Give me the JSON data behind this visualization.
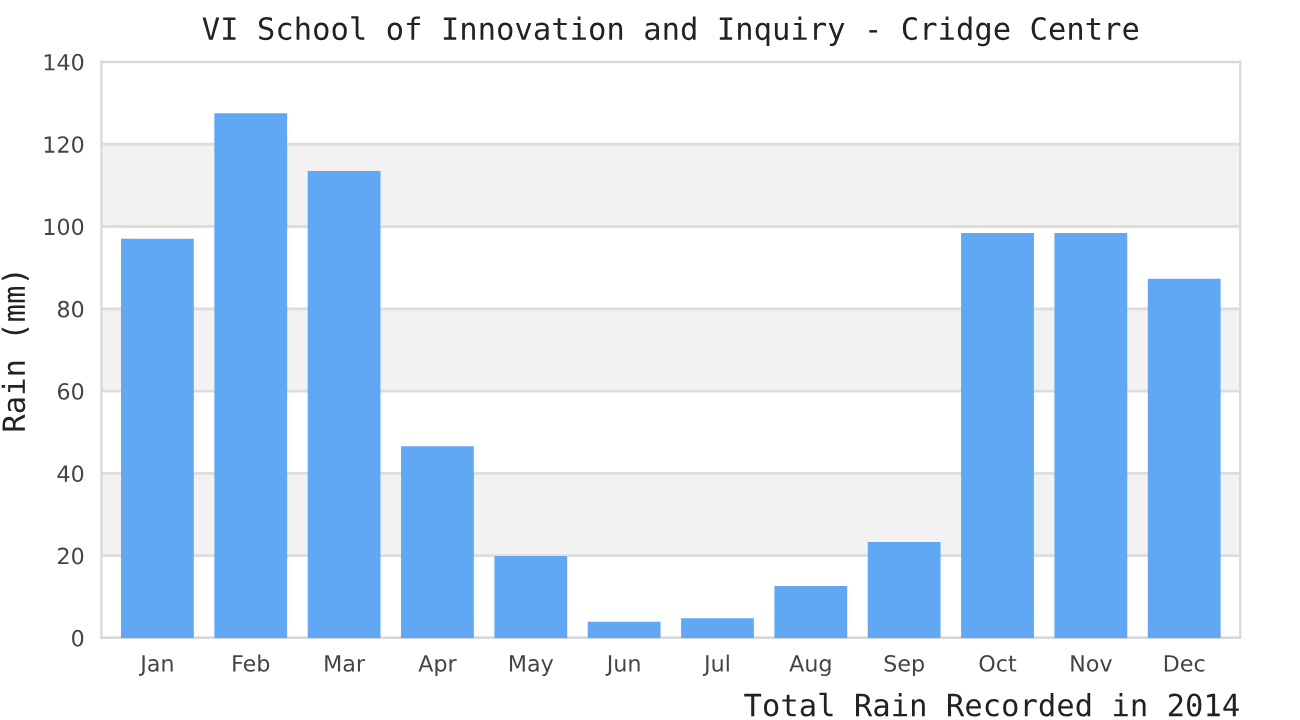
{
  "chart_data": {
    "type": "bar",
    "title": "VI School of Innovation and Inquiry - Cridge Centre",
    "xlabel": "Total Rain Recorded in 2014",
    "ylabel": "Rain (mm)",
    "categories": [
      "Jan",
      "Feb",
      "Mar",
      "Apr",
      "May",
      "Jun",
      "Jul",
      "Aug",
      "Sep",
      "Oct",
      "Nov",
      "Dec"
    ],
    "values": [
      97.0,
      127.5,
      113.5,
      46.6,
      19.9,
      3.9,
      4.8,
      12.6,
      23.3,
      98.4,
      98.4,
      87.3
    ],
    "color": "#60a8f4",
    "ylim": [
      0,
      140
    ],
    "yticks": [
      0,
      20,
      40,
      60,
      80,
      100,
      120,
      140
    ],
    "grid": "y"
  }
}
